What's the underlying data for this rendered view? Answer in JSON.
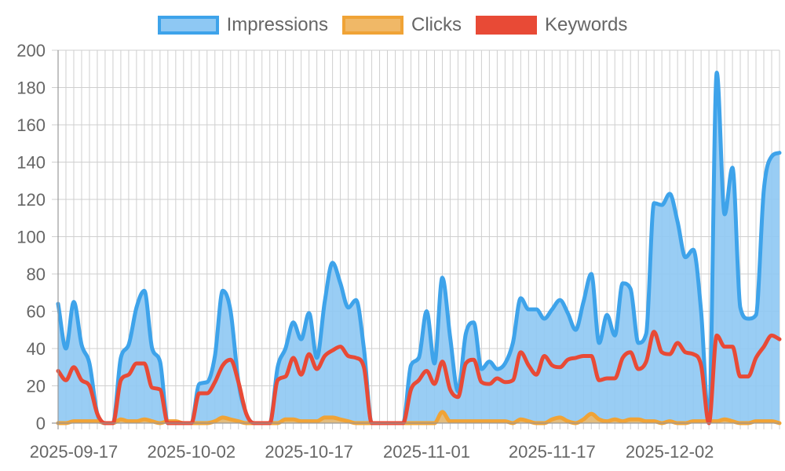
{
  "colors": {
    "impressions": "#3ea3ea",
    "impressions_fill": "#8ec8f3",
    "clicks": "#f0a336",
    "clicks_fill": "#f0b867",
    "keywords": "#e84a36",
    "grid": "#cfcfcf",
    "text": "#666666"
  },
  "legend": [
    {
      "label": "Impressions",
      "key": "impressions"
    },
    {
      "label": "Clicks",
      "key": "clicks"
    },
    {
      "label": "Keywords",
      "key": "keywords"
    }
  ],
  "chart_data": {
    "type": "area",
    "x_start": "2025-09-15",
    "x_tick_labels": [
      "2025-09-17",
      "2025-10-02",
      "2025-10-17",
      "2025-11-01",
      "2025-11-17",
      "2025-12-02"
    ],
    "y_ticks": [
      0,
      20,
      40,
      60,
      80,
      100,
      120,
      140,
      160,
      180,
      200
    ],
    "ylim": [
      0,
      200
    ],
    "grid": true,
    "legend_position": "top",
    "series": [
      {
        "name": "Impressions",
        "key": "impressions",
        "fill": true,
        "values": [
          64,
          40,
          65,
          42,
          32,
          5,
          0,
          0,
          35,
          42,
          62,
          71,
          40,
          33,
          0,
          0,
          0,
          0,
          21,
          22,
          36,
          71,
          60,
          22,
          5,
          0,
          0,
          0,
          30,
          40,
          54,
          45,
          59,
          35,
          65,
          86,
          75,
          62,
          66,
          40,
          0,
          0,
          0,
          0,
          0,
          31,
          35,
          60,
          32,
          78,
          46,
          17,
          48,
          54,
          29,
          33,
          29,
          32,
          43,
          67,
          61,
          61,
          56,
          61,
          66,
          59,
          50,
          65,
          80,
          43,
          58,
          47,
          75,
          72,
          43,
          48,
          118,
          117,
          123,
          108,
          89,
          93,
          60,
          0,
          188,
          112,
          137,
          62,
          56,
          58,
          125,
          143,
          145
        ]
      },
      {
        "name": "Clicks",
        "key": "clicks",
        "fill": true,
        "values": [
          0,
          0,
          1,
          1,
          1,
          1,
          0,
          0,
          2,
          1,
          1,
          2,
          1,
          0,
          1,
          1,
          0,
          0,
          0,
          0,
          1,
          3,
          2,
          1,
          0,
          0,
          0,
          0,
          0,
          2,
          2,
          1,
          1,
          1,
          3,
          3,
          2,
          1,
          0,
          0,
          0,
          0,
          0,
          0,
          0,
          0,
          0,
          0,
          0,
          6,
          1,
          1,
          1,
          1,
          1,
          1,
          1,
          1,
          0,
          2,
          1,
          0,
          0,
          2,
          3,
          1,
          0,
          2,
          5,
          2,
          1,
          2,
          1,
          2,
          2,
          1,
          1,
          0,
          1,
          0,
          0,
          1,
          1,
          1,
          1,
          2,
          1,
          0,
          0,
          1,
          1,
          1,
          0
        ]
      },
      {
        "name": "Keywords",
        "key": "keywords",
        "fill": false,
        "values": [
          28,
          23,
          30,
          23,
          20,
          5,
          0,
          0,
          23,
          26,
          32,
          32,
          19,
          18,
          0,
          0,
          0,
          0,
          16,
          16,
          22,
          31,
          34,
          22,
          5,
          0,
          0,
          0,
          23,
          25,
          35,
          26,
          37,
          29,
          36,
          39,
          41,
          36,
          35,
          30,
          0,
          0,
          0,
          0,
          0,
          18,
          23,
          28,
          21,
          33,
          18,
          14,
          32,
          34,
          22,
          21,
          24,
          22,
          23,
          38,
          31,
          26,
          36,
          31,
          30,
          34,
          35,
          36,
          36,
          23,
          24,
          24,
          35,
          38,
          29,
          33,
          49,
          38,
          37,
          43,
          38,
          37,
          31,
          0,
          47,
          41,
          41,
          25,
          25,
          35,
          41,
          47,
          45
        ]
      }
    ]
  }
}
